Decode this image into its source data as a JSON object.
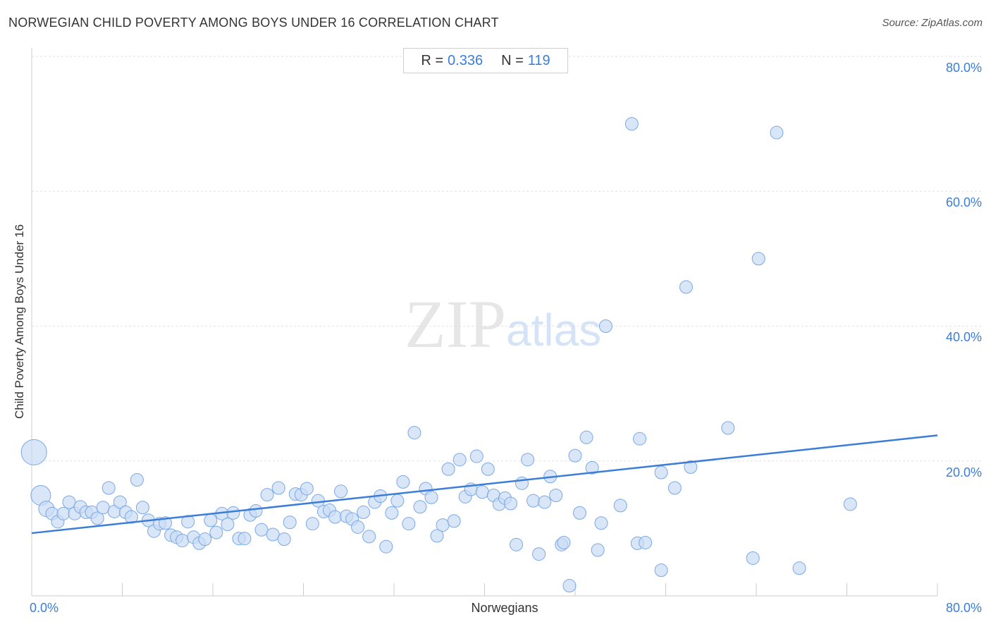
{
  "chart_data": {
    "type": "scatter",
    "title": "NORWEGIAN CHILD POVERTY AMONG BOYS UNDER 16 CORRELATION CHART",
    "source": "Source: ZipAtlas.com",
    "xlabel": "Norwegians",
    "ylabel": "Child Poverty Among Boys Under 16",
    "xlim": [
      0,
      80
    ],
    "ylim": [
      0,
      80
    ],
    "x_tick_labels": [
      "0.0%",
      "80.0%"
    ],
    "y_tick_labels": [
      "20.0%",
      "40.0%",
      "60.0%",
      "80.0%"
    ],
    "stats": {
      "r_label": "R =",
      "r_value": "0.336",
      "n_label": "N =",
      "n_value": "119"
    },
    "trendline": {
      "x": [
        0,
        80
      ],
      "y": [
        9.3,
        23.8
      ]
    },
    "watermark": "ZIPatlas",
    "points": [
      {
        "x": 0.2,
        "y": 21.3,
        "s": 18
      },
      {
        "x": 0.8,
        "y": 14.9,
        "s": 14
      },
      {
        "x": 1.3,
        "y": 12.9,
        "s": 11
      },
      {
        "x": 1.8,
        "y": 12.2,
        "s": 9
      },
      {
        "x": 2.3,
        "y": 11.0,
        "s": 9
      },
      {
        "x": 2.8,
        "y": 12.2,
        "s": 9
      },
      {
        "x": 3.3,
        "y": 13.9,
        "s": 9
      },
      {
        "x": 3.8,
        "y": 12.2,
        "s": 9
      },
      {
        "x": 4.3,
        "y": 13.2,
        "s": 9
      },
      {
        "x": 4.8,
        "y": 12.4,
        "s": 9
      },
      {
        "x": 5.3,
        "y": 12.4,
        "s": 9
      },
      {
        "x": 5.8,
        "y": 11.5,
        "s": 9
      },
      {
        "x": 6.3,
        "y": 13.1,
        "s": 9
      },
      {
        "x": 6.8,
        "y": 16.0,
        "s": 9
      },
      {
        "x": 7.3,
        "y": 12.5,
        "s": 9
      },
      {
        "x": 7.8,
        "y": 13.9,
        "s": 9
      },
      {
        "x": 8.3,
        "y": 12.4,
        "s": 9
      },
      {
        "x": 8.8,
        "y": 11.7,
        "s": 9
      },
      {
        "x": 9.3,
        "y": 17.2,
        "s": 9
      },
      {
        "x": 9.8,
        "y": 13.1,
        "s": 9
      },
      {
        "x": 10.3,
        "y": 11.2,
        "s": 9
      },
      {
        "x": 10.8,
        "y": 9.6,
        "s": 9
      },
      {
        "x": 11.3,
        "y": 10.7,
        "s": 9
      },
      {
        "x": 11.8,
        "y": 10.8,
        "s": 9
      },
      {
        "x": 12.3,
        "y": 9.0,
        "s": 9
      },
      {
        "x": 12.8,
        "y": 8.7,
        "s": 9
      },
      {
        "x": 13.3,
        "y": 8.2,
        "s": 9
      },
      {
        "x": 13.8,
        "y": 11.0,
        "s": 9
      },
      {
        "x": 14.3,
        "y": 8.7,
        "s": 9
      },
      {
        "x": 14.8,
        "y": 7.8,
        "s": 9
      },
      {
        "x": 15.3,
        "y": 8.4,
        "s": 9
      },
      {
        "x": 15.8,
        "y": 11.2,
        "s": 9
      },
      {
        "x": 16.3,
        "y": 9.4,
        "s": 9
      },
      {
        "x": 16.8,
        "y": 12.2,
        "s": 9
      },
      {
        "x": 17.3,
        "y": 10.6,
        "s": 9
      },
      {
        "x": 17.8,
        "y": 12.3,
        "s": 9
      },
      {
        "x": 18.3,
        "y": 8.5,
        "s": 9
      },
      {
        "x": 18.8,
        "y": 8.5,
        "s": 9
      },
      {
        "x": 19.3,
        "y": 12.0,
        "s": 9
      },
      {
        "x": 19.8,
        "y": 12.6,
        "s": 9
      },
      {
        "x": 20.3,
        "y": 9.8,
        "s": 9
      },
      {
        "x": 20.8,
        "y": 15.0,
        "s": 9
      },
      {
        "x": 21.3,
        "y": 9.1,
        "s": 9
      },
      {
        "x": 21.8,
        "y": 16.0,
        "s": 9
      },
      {
        "x": 22.3,
        "y": 8.4,
        "s": 9
      },
      {
        "x": 22.8,
        "y": 10.9,
        "s": 9
      },
      {
        "x": 23.3,
        "y": 15.1,
        "s": 9
      },
      {
        "x": 23.8,
        "y": 15.0,
        "s": 9
      },
      {
        "x": 24.3,
        "y": 15.9,
        "s": 9
      },
      {
        "x": 24.8,
        "y": 10.7,
        "s": 9
      },
      {
        "x": 25.3,
        "y": 14.1,
        "s": 9
      },
      {
        "x": 25.8,
        "y": 12.5,
        "s": 9
      },
      {
        "x": 26.3,
        "y": 12.7,
        "s": 9
      },
      {
        "x": 26.8,
        "y": 11.7,
        "s": 9
      },
      {
        "x": 27.3,
        "y": 15.5,
        "s": 9
      },
      {
        "x": 27.8,
        "y": 11.8,
        "s": 9
      },
      {
        "x": 28.3,
        "y": 11.4,
        "s": 9
      },
      {
        "x": 28.8,
        "y": 10.2,
        "s": 9
      },
      {
        "x": 29.3,
        "y": 12.4,
        "s": 9
      },
      {
        "x": 29.8,
        "y": 8.8,
        "s": 9
      },
      {
        "x": 30.3,
        "y": 13.9,
        "s": 9
      },
      {
        "x": 30.8,
        "y": 14.8,
        "s": 9
      },
      {
        "x": 31.3,
        "y": 7.3,
        "s": 9
      },
      {
        "x": 31.8,
        "y": 12.3,
        "s": 9
      },
      {
        "x": 32.3,
        "y": 14.1,
        "s": 9
      },
      {
        "x": 32.8,
        "y": 16.9,
        "s": 9
      },
      {
        "x": 33.3,
        "y": 10.7,
        "s": 9
      },
      {
        "x": 33.8,
        "y": 24.2,
        "s": 9
      },
      {
        "x": 34.3,
        "y": 13.2,
        "s": 9
      },
      {
        "x": 34.8,
        "y": 15.9,
        "s": 9
      },
      {
        "x": 35.3,
        "y": 14.6,
        "s": 9
      },
      {
        "x": 35.8,
        "y": 8.9,
        "s": 9
      },
      {
        "x": 36.3,
        "y": 10.5,
        "s": 9
      },
      {
        "x": 36.8,
        "y": 18.8,
        "s": 9
      },
      {
        "x": 37.3,
        "y": 11.1,
        "s": 9
      },
      {
        "x": 37.8,
        "y": 20.2,
        "s": 9
      },
      {
        "x": 38.3,
        "y": 14.7,
        "s": 9
      },
      {
        "x": 38.8,
        "y": 15.8,
        "s": 9
      },
      {
        "x": 39.3,
        "y": 20.7,
        "s": 9
      },
      {
        "x": 39.8,
        "y": 15.4,
        "s": 9
      },
      {
        "x": 40.3,
        "y": 18.8,
        "s": 9
      },
      {
        "x": 40.8,
        "y": 14.9,
        "s": 9
      },
      {
        "x": 41.3,
        "y": 13.6,
        "s": 9
      },
      {
        "x": 41.8,
        "y": 14.5,
        "s": 9
      },
      {
        "x": 42.3,
        "y": 13.7,
        "s": 9
      },
      {
        "x": 42.8,
        "y": 7.6,
        "s": 9
      },
      {
        "x": 43.3,
        "y": 16.7,
        "s": 9
      },
      {
        "x": 43.8,
        "y": 20.2,
        "s": 9
      },
      {
        "x": 44.3,
        "y": 14.1,
        "s": 9
      },
      {
        "x": 44.8,
        "y": 6.2,
        "s": 9
      },
      {
        "x": 45.3,
        "y": 13.9,
        "s": 9
      },
      {
        "x": 45.8,
        "y": 17.7,
        "s": 9
      },
      {
        "x": 46.3,
        "y": 14.9,
        "s": 9
      },
      {
        "x": 46.8,
        "y": 7.6,
        "s": 9
      },
      {
        "x": 47.0,
        "y": 7.9,
        "s": 9
      },
      {
        "x": 47.5,
        "y": 1.5,
        "s": 9
      },
      {
        "x": 48.0,
        "y": 20.8,
        "s": 9
      },
      {
        "x": 48.4,
        "y": 12.3,
        "s": 9
      },
      {
        "x": 49.0,
        "y": 23.5,
        "s": 9
      },
      {
        "x": 49.5,
        "y": 19.0,
        "s": 9
      },
      {
        "x": 50.0,
        "y": 6.8,
        "s": 9
      },
      {
        "x": 50.3,
        "y": 10.8,
        "s": 9
      },
      {
        "x": 50.7,
        "y": 40.0,
        "s": 9
      },
      {
        "x": 52.0,
        "y": 13.4,
        "s": 9
      },
      {
        "x": 53.0,
        "y": 70.0,
        "s": 9
      },
      {
        "x": 53.5,
        "y": 7.8,
        "s": 9
      },
      {
        "x": 53.7,
        "y": 23.3,
        "s": 9
      },
      {
        "x": 54.2,
        "y": 7.9,
        "s": 9
      },
      {
        "x": 55.6,
        "y": 3.8,
        "s": 9
      },
      {
        "x": 55.6,
        "y": 18.3,
        "s": 9
      },
      {
        "x": 56.8,
        "y": 16.0,
        "s": 9
      },
      {
        "x": 57.8,
        "y": 45.8,
        "s": 9
      },
      {
        "x": 58.2,
        "y": 19.1,
        "s": 9
      },
      {
        "x": 61.5,
        "y": 24.9,
        "s": 9
      },
      {
        "x": 63.7,
        "y": 5.6,
        "s": 9
      },
      {
        "x": 64.2,
        "y": 50.0,
        "s": 9
      },
      {
        "x": 65.8,
        "y": 68.7,
        "s": 9
      },
      {
        "x": 67.8,
        "y": 4.1,
        "s": 9
      },
      {
        "x": 72.3,
        "y": 13.6,
        "s": 9
      }
    ]
  },
  "colors": {
    "accent": "#3b7dd8",
    "point_fill": "#c9dcf5",
    "point_stroke": "#7aa8e6",
    "grid": "#e2e2e2",
    "watermark_gray": "#e6e6e6",
    "watermark_blue": "#d4e3f7"
  }
}
